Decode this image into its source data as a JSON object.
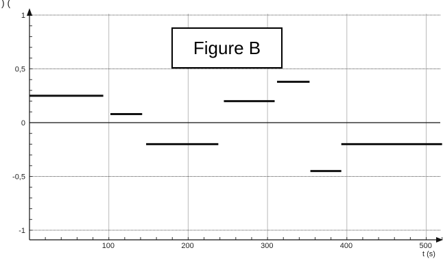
{
  "figure_label": "Figure B",
  "corner_glyph": ") (",
  "chart_data": {
    "type": "line",
    "xlabel": "t (s)",
    "ylabel": "",
    "xlim": [
      0,
      520
    ],
    "ylim": [
      -1.1,
      1.1
    ],
    "x_ticks": [
      100,
      200,
      300,
      400,
      500
    ],
    "y_ticks": [
      {
        "value": 1,
        "label": "1"
      },
      {
        "value": 0.5,
        "label": "0,5"
      },
      {
        "value": 0,
        "label": "0"
      },
      {
        "value": -0.5,
        "label": "-0,5"
      },
      {
        "value": -1,
        "label": "-1"
      }
    ],
    "segments": [
      {
        "x_start": 0,
        "x_end": 93,
        "y": 0.25
      },
      {
        "x_start": 102,
        "x_end": 142,
        "y": 0.08
      },
      {
        "x_start": 147,
        "x_end": 238,
        "y": -0.2
      },
      {
        "x_start": 245,
        "x_end": 309,
        "y": 0.2
      },
      {
        "x_start": 312,
        "x_end": 353,
        "y": 0.38
      },
      {
        "x_start": 354,
        "x_end": 393,
        "y": -0.45
      },
      {
        "x_start": 393,
        "x_end": 520,
        "y": -0.2
      }
    ],
    "grid": true
  }
}
